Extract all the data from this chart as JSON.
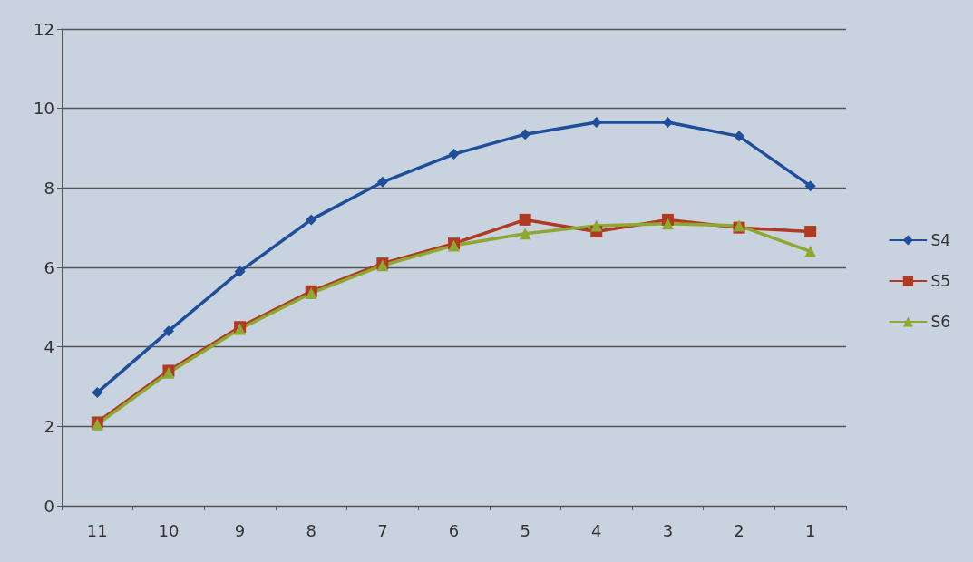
{
  "chart_data": {
    "type": "line",
    "categories": [
      "11",
      "10",
      "9",
      "8",
      "7",
      "6",
      "5",
      "4",
      "3",
      "2",
      "1"
    ],
    "series": [
      {
        "name": "S4",
        "color": "#1f4e9a",
        "marker": "diamond",
        "values": [
          2.85,
          4.4,
          5.9,
          7.2,
          8.15,
          8.85,
          9.35,
          9.65,
          9.65,
          9.3,
          8.05
        ]
      },
      {
        "name": "S5",
        "color": "#b03a22",
        "marker": "square",
        "values": [
          2.1,
          3.4,
          4.5,
          5.4,
          6.1,
          6.6,
          7.2,
          6.9,
          7.2,
          7.0,
          6.9
        ]
      },
      {
        "name": "S6",
        "color": "#8fa832",
        "marker": "triangle",
        "values": [
          2.05,
          3.35,
          4.45,
          5.35,
          6.05,
          6.55,
          6.85,
          7.05,
          7.1,
          7.05,
          6.4
        ]
      }
    ],
    "ylim": [
      0,
      12
    ],
    "yticks": [
      0,
      2,
      4,
      6,
      8,
      10,
      12
    ],
    "grid": "y",
    "legend": "right"
  }
}
